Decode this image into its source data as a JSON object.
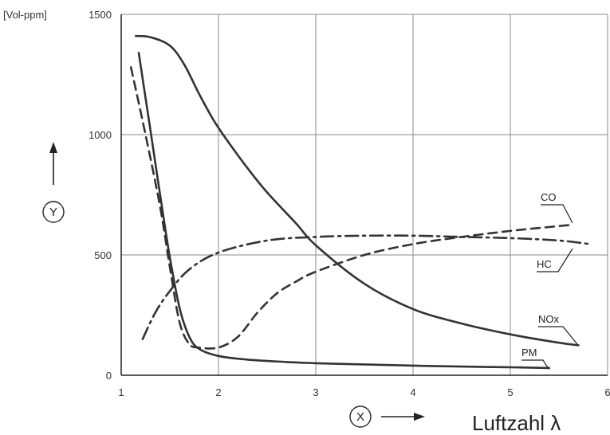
{
  "chart_data": {
    "type": "line",
    "unit_label": "[Vol-ppm]",
    "xlabel": "Luftzahl λ",
    "y_axis_marker": "Y",
    "x_axis_marker": "X",
    "xlim": [
      1,
      6
    ],
    "ylim": [
      0,
      1500
    ],
    "x_ticks": [
      "1",
      "2",
      "3",
      "4",
      "5",
      "6"
    ],
    "y_ticks": [
      "0",
      "500",
      "1000",
      "1500"
    ],
    "grid": true,
    "series": [
      {
        "name": "CO",
        "style": "dashed",
        "x": [
          1.1,
          1.25,
          1.4,
          1.5,
          1.6,
          1.7,
          1.8,
          2.0,
          2.2,
          2.4,
          2.6,
          2.8,
          3.0,
          3.5,
          4.0,
          4.5,
          5.0,
          5.5,
          5.65
        ],
        "y": [
          1280,
          1000,
          700,
          450,
          220,
          130,
          115,
          115,
          160,
          260,
          340,
          390,
          430,
          500,
          545,
          575,
          600,
          620,
          625
        ]
      },
      {
        "name": "HC",
        "style": "dash-dot",
        "x": [
          1.22,
          1.35,
          1.5,
          1.7,
          2.0,
          2.5,
          3.0,
          3.5,
          4.0,
          4.5,
          5.0,
          5.5,
          5.82
        ],
        "y": [
          150,
          260,
          350,
          440,
          510,
          560,
          575,
          580,
          580,
          575,
          570,
          560,
          545
        ]
      },
      {
        "name": "NOx",
        "style": "solid",
        "x": [
          1.15,
          1.3,
          1.5,
          1.65,
          1.8,
          1.95,
          2.1,
          2.3,
          2.5,
          2.8,
          3.0,
          3.5,
          4.0,
          4.5,
          5.0,
          5.5,
          5.7
        ],
        "y": [
          1410,
          1405,
          1370,
          1290,
          1170,
          1060,
          970,
          860,
          760,
          630,
          540,
          380,
          275,
          215,
          170,
          135,
          125
        ]
      },
      {
        "name": "PM",
        "style": "solid",
        "x": [
          1.18,
          1.3,
          1.4,
          1.5,
          1.6,
          1.7,
          1.8,
          2.0,
          2.3,
          2.7,
          3.0,
          3.5,
          4.0,
          4.5,
          5.0,
          5.4
        ],
        "y": [
          1340,
          1020,
          750,
          490,
          280,
          160,
          110,
          80,
          65,
          55,
          50,
          45,
          40,
          36,
          33,
          30
        ]
      }
    ],
    "series_labels": [
      "CO",
      "HC",
      "NOx",
      "PM"
    ]
  }
}
